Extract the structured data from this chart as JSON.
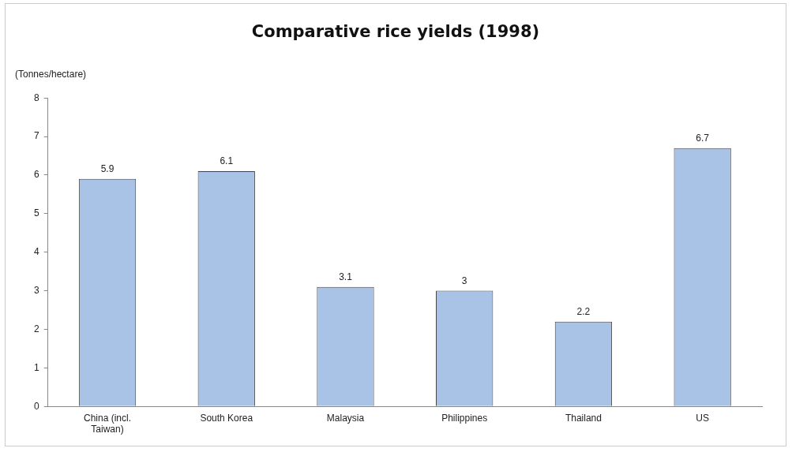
{
  "chart_data": {
    "type": "bar",
    "title": "Comparative rice yields (1998)",
    "ylabel": "(Tonnes/hectare)",
    "categories": [
      "China (incl. Taiwan)",
      "South Korea",
      "Malaysia",
      "Philippines",
      "Thailand",
      "US"
    ],
    "values": [
      5.9,
      6.1,
      3.1,
      3,
      2.2,
      6.7
    ],
    "color": "#a9c3e6",
    "ylim": [
      0,
      8
    ],
    "yticks": [
      0,
      1,
      2,
      3,
      4,
      5,
      6,
      7,
      8
    ],
    "data_labels": true
  }
}
